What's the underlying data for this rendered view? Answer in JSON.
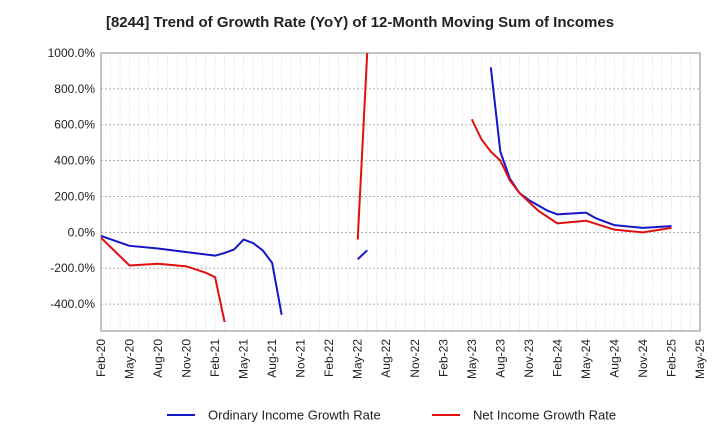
{
  "chart_data": {
    "type": "line",
    "title": "[8244]  Trend of Growth Rate (YoY) of 12-Month Moving Sum of Incomes",
    "xlabel": "",
    "ylabel": "",
    "ylim": [
      -550,
      1000
    ],
    "yticks": [
      1000,
      800,
      600,
      400,
      200,
      0,
      -200,
      -400
    ],
    "ytick_labels": [
      "1000.0%",
      "800.0%",
      "600.0%",
      "400.0%",
      "200.0%",
      "0.0%",
      "-200.0%",
      "-400.0%"
    ],
    "x_start": "Feb-20",
    "x_end": "May-25",
    "xtick_labels": [
      "Feb-20",
      "May-20",
      "Aug-20",
      "Nov-20",
      "Feb-21",
      "May-21",
      "Aug-21",
      "Nov-21",
      "Feb-22",
      "May-22",
      "Aug-22",
      "Nov-22",
      "Feb-23",
      "May-23",
      "Aug-23",
      "Nov-23",
      "Feb-24",
      "May-24",
      "Aug-24",
      "Nov-24",
      "Feb-25",
      "May-25"
    ],
    "grid": true,
    "legend": "bottom",
    "series": [
      {
        "name": "Ordinary Income Growth Rate",
        "color": "#1515c8",
        "points": [
          [
            "2020-02",
            -20
          ],
          [
            "2020-05",
            -75
          ],
          [
            "2020-08",
            -90
          ],
          [
            "2020-11",
            -110
          ],
          [
            "2021-02",
            -130
          ],
          [
            "2021-03",
            -115
          ],
          [
            "2021-04",
            -95
          ],
          [
            "2021-05",
            -40
          ],
          [
            "2021-06",
            -60
          ],
          [
            "2021-07",
            -100
          ],
          [
            "2021-08",
            -170
          ],
          [
            "2021-09",
            -460
          ],
          null,
          [
            "2022-05",
            -150
          ],
          [
            "2022-06",
            -100
          ],
          null,
          [
            "2023-07",
            920
          ],
          [
            "2023-08",
            450
          ],
          [
            "2023-09",
            300
          ],
          [
            "2023-10",
            220
          ],
          [
            "2023-11",
            180
          ],
          [
            "2023-12",
            150
          ],
          [
            "2024-01",
            120
          ],
          [
            "2024-02",
            100
          ],
          [
            "2024-05",
            110
          ],
          [
            "2024-06",
            80
          ],
          [
            "2024-08",
            40
          ],
          [
            "2024-11",
            25
          ],
          [
            "2025-02",
            35
          ]
        ]
      },
      {
        "name": "Net Income Growth Rate",
        "color": "#e01010",
        "points": [
          [
            "2020-02",
            -30
          ],
          [
            "2020-05",
            -185
          ],
          [
            "2020-08",
            -175
          ],
          [
            "2020-11",
            -190
          ],
          [
            "2021-01",
            -225
          ],
          [
            "2021-02",
            -250
          ],
          [
            "2021-03",
            -500
          ],
          null,
          [
            "2022-05",
            -40
          ],
          [
            "2022-06",
            1000
          ],
          null,
          [
            "2023-05",
            630
          ],
          [
            "2023-06",
            520
          ],
          [
            "2023-07",
            450
          ],
          [
            "2023-08",
            400
          ],
          [
            "2023-09",
            290
          ],
          [
            "2023-10",
            220
          ],
          [
            "2023-11",
            170
          ],
          [
            "2023-12",
            120
          ],
          [
            "2024-02",
            50
          ],
          [
            "2024-05",
            65
          ],
          [
            "2024-08",
            15
          ],
          [
            "2024-11",
            0
          ],
          [
            "2025-02",
            25
          ]
        ]
      }
    ]
  }
}
